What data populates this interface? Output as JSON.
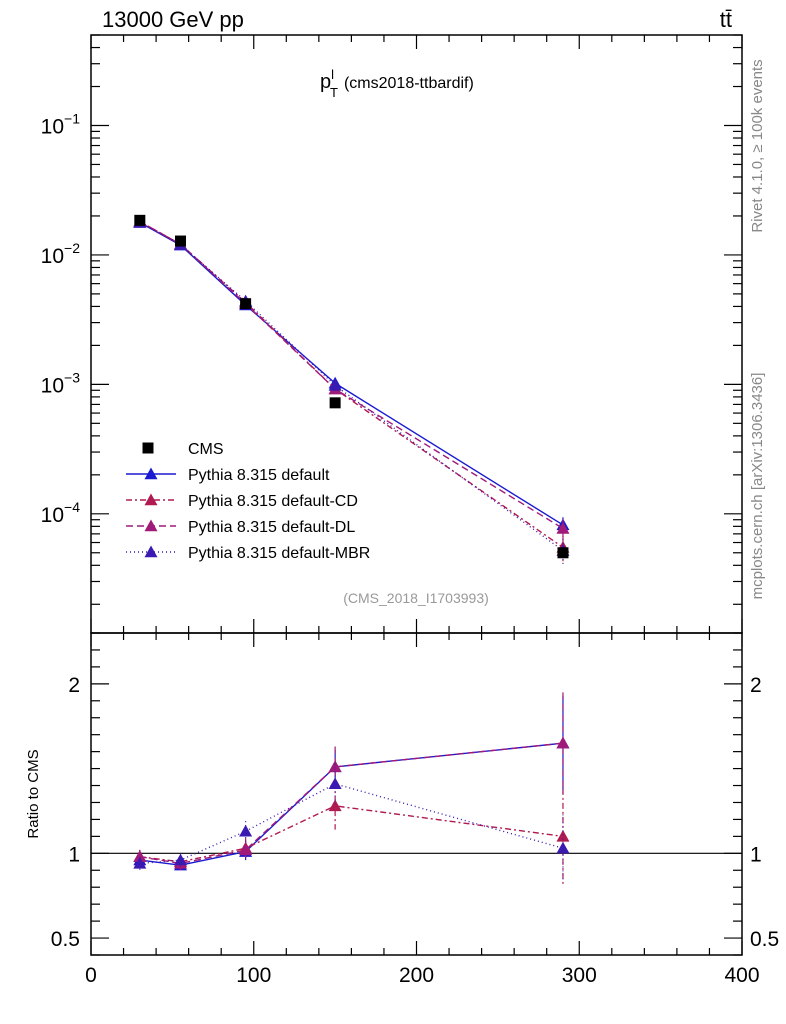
{
  "header": {
    "energy_label": "13000 GeV pp",
    "process_label": "tt̄"
  },
  "side_labels": {
    "rivet": "Rivet 4.1.0, ≥ 100k events",
    "mcplots": "mcplots.cern.ch [arXiv:1306.3436]"
  },
  "chart_data": {
    "type": "line",
    "title_main": "p",
    "title_sup": "l",
    "title_sub": "T",
    "title_rest": "(cms2018-ttbardif)",
    "analysis_id": "(CMS_2018_I1703993)",
    "xlabel": "",
    "ylabel_main": "",
    "ylabel_ratio": "Ratio to CMS",
    "xlim": [
      0,
      400
    ],
    "ylim_main": [
      1.2e-05,
      0.5
    ],
    "ylim_ratio": [
      0.4,
      2.3
    ],
    "log_y_main": true,
    "x_ticks": [
      0,
      100,
      200,
      300,
      400
    ],
    "x_tick_labels": [
      "0",
      "100",
      "200",
      "300",
      "400"
    ],
    "y_ticks_main": [
      0.0001,
      0.001,
      0.01,
      0.1
    ],
    "y_tick_bases": [
      "10",
      "10",
      "10",
      "10"
    ],
    "y_tick_exps": [
      "−4",
      "−3",
      "−2",
      "−1"
    ],
    "y_ticks_ratio": [
      0.5,
      1,
      2
    ],
    "y_tick_labels_ratio": [
      "0.5",
      "1",
      "2"
    ],
    "legend_position": "bottom-left",
    "data": {
      "name": "CMS",
      "x": [
        30,
        55,
        95,
        150,
        290
      ],
      "y": [
        0.0185,
        0.0128,
        0.0042,
        0.00072,
        5e-05
      ],
      "xerr": [
        0,
        0,
        0,
        0,
        0
      ]
    },
    "series": [
      {
        "name": "Pythia 8.315 default",
        "color": "#1a1ad1",
        "dash": "",
        "main": [
          0.0178,
          0.0119,
          0.0041,
          0.00102,
          8.2e-05
        ],
        "main_err": [
          0.0004,
          0.0003,
          0.0001,
          4e-05,
          1.2e-05
        ],
        "ratio": [
          0.96,
          0.93,
          1.01,
          1.51,
          1.65
        ],
        "ratio_err": [
          0.03,
          0.03,
          0.05,
          0.1,
          0.28
        ]
      },
      {
        "name": "Pythia 8.315 default-CD",
        "color": "#b01a50",
        "dash": "6,3,2,3",
        "main": [
          0.0181,
          0.0121,
          0.0043,
          0.00092,
          5.5e-05
        ],
        "main_err": [
          0.0004,
          0.0003,
          0.0001,
          4e-05,
          1.2e-05
        ],
        "ratio": [
          0.98,
          0.95,
          1.03,
          1.28,
          1.1
        ],
        "ratio_err": [
          0.04,
          0.04,
          0.06,
          0.14,
          0.28
        ]
      },
      {
        "name": "Pythia 8.315 default-DL",
        "color": "#a01a7a",
        "dash": "7,4",
        "main": [
          0.0181,
          0.0121,
          0.0042,
          0.00092,
          7.7e-05
        ],
        "main_err": [
          0.0004,
          0.0003,
          0.0001,
          4e-05,
          1.4e-05
        ],
        "ratio": [
          0.98,
          0.94,
          1.02,
          1.51,
          1.65
        ],
        "ratio_err": [
          0.04,
          0.04,
          0.06,
          0.12,
          0.3
        ]
      },
      {
        "name": "Pythia 8.315 default-MBR",
        "color": "#3a1ab0",
        "dash": "1,3",
        "main": [
          0.0178,
          0.012,
          0.0044,
          0.00098,
          5.2e-05
        ],
        "main_err": [
          0.0004,
          0.0003,
          0.0001,
          4e-05,
          1.2e-05
        ],
        "ratio": [
          0.94,
          0.96,
          1.13,
          1.41,
          1.03
        ],
        "ratio_err": [
          0.04,
          0.04,
          0.06,
          0.12,
          0.2
        ]
      }
    ]
  }
}
